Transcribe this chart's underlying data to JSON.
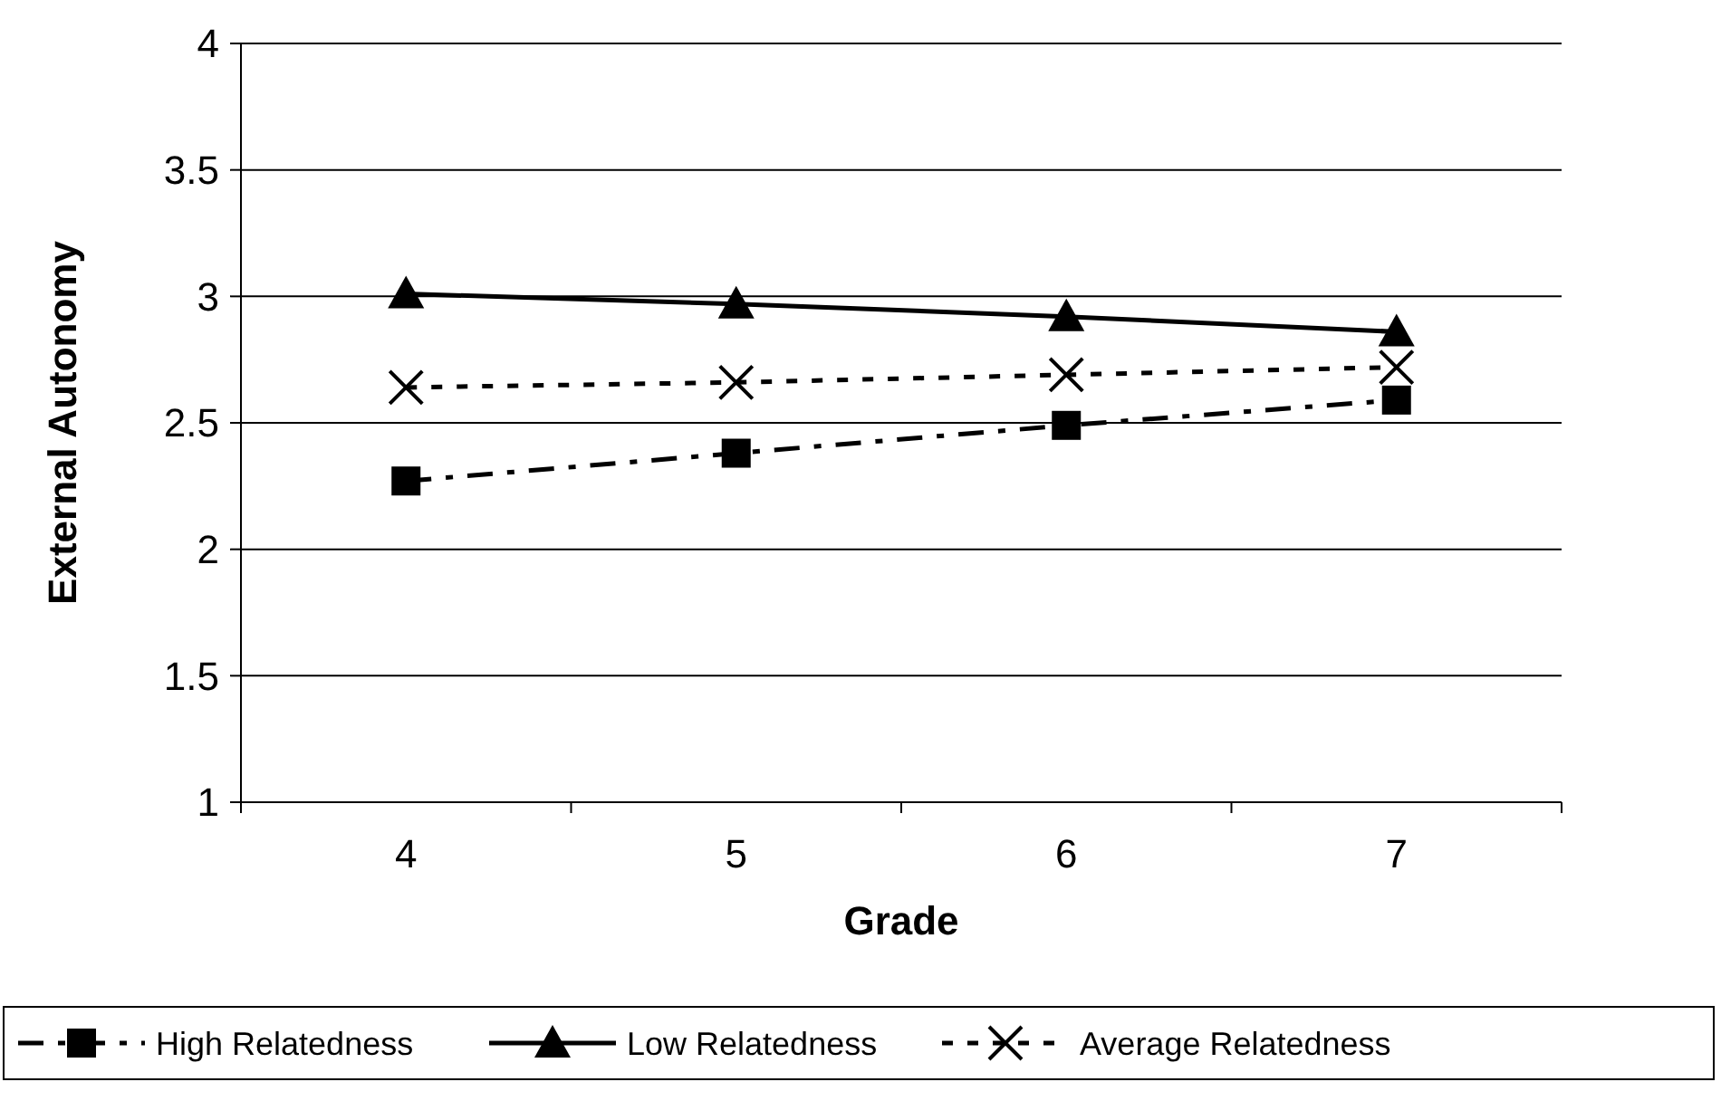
{
  "chart_data": {
    "type": "line",
    "xlabel": "Grade",
    "ylabel": "External Autonomy",
    "categories": [
      "4",
      "5",
      "6",
      "7"
    ],
    "ylim": [
      1,
      4
    ],
    "yticks": [
      1,
      1.5,
      2,
      2.5,
      3,
      3.5,
      4
    ],
    "grid": "y",
    "legend": "bottom",
    "series": [
      {
        "name": "High Relatedness",
        "color": "#000000",
        "marker": "square",
        "line_style": "dashdot",
        "values": [
          2.27,
          2.38,
          2.49,
          2.59
        ]
      },
      {
        "name": "Low Relatedness",
        "color": "#000000",
        "marker": "triangle",
        "line_style": "solid",
        "values": [
          3.01,
          2.97,
          2.92,
          2.86
        ]
      },
      {
        "name": "Average Relatedness",
        "color": "#000000",
        "marker": "cross",
        "line_style": "dotted",
        "values": [
          2.64,
          2.66,
          2.69,
          2.72
        ]
      }
    ]
  }
}
